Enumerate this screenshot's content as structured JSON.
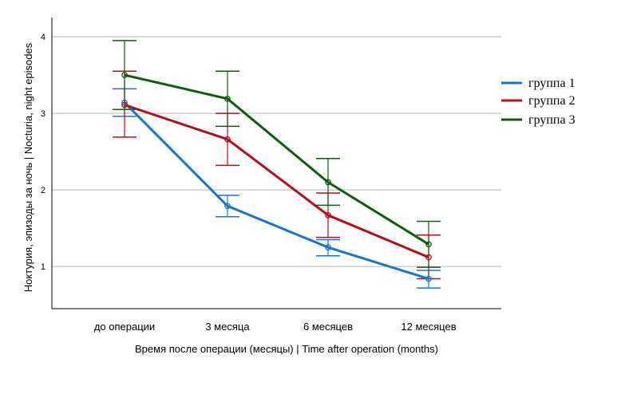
{
  "chart_data": {
    "type": "line",
    "title": "",
    "xlabel": "Время после операции (месяцы) | Time after operation (months)",
    "ylabel": "Ноктурия, эпизоды за ночь | Nocturia, night episodes",
    "categories": [
      "до операции",
      "3 месяца",
      "6 месяцев",
      "12 месяцев"
    ],
    "ylim": [
      0.45,
      4.25
    ],
    "yticks": [
      1,
      2,
      3,
      4
    ],
    "grid": true,
    "legend_position": "right",
    "series": [
      {
        "name": "группа 1",
        "color": "#1874cd",
        "values": [
          3.14,
          1.79,
          1.25,
          0.84
        ],
        "error_low": [
          2.96,
          1.65,
          1.14,
          0.72
        ],
        "error_high": [
          3.32,
          1.93,
          1.35,
          0.95
        ]
      },
      {
        "name": "группа 2",
        "color": "#b50d1c",
        "values": [
          3.11,
          2.66,
          1.67,
          1.12
        ],
        "error_low": [
          2.69,
          2.32,
          1.38,
          0.84
        ],
        "error_high": [
          3.55,
          3.0,
          1.96,
          1.41
        ]
      },
      {
        "name": "группа 3",
        "color": "#0b5e0b",
        "values": [
          3.5,
          3.19,
          2.1,
          1.29
        ],
        "error_low": [
          3.05,
          2.83,
          1.8,
          0.99
        ],
        "error_high": [
          3.95,
          3.55,
          2.41,
          1.59
        ]
      }
    ]
  }
}
